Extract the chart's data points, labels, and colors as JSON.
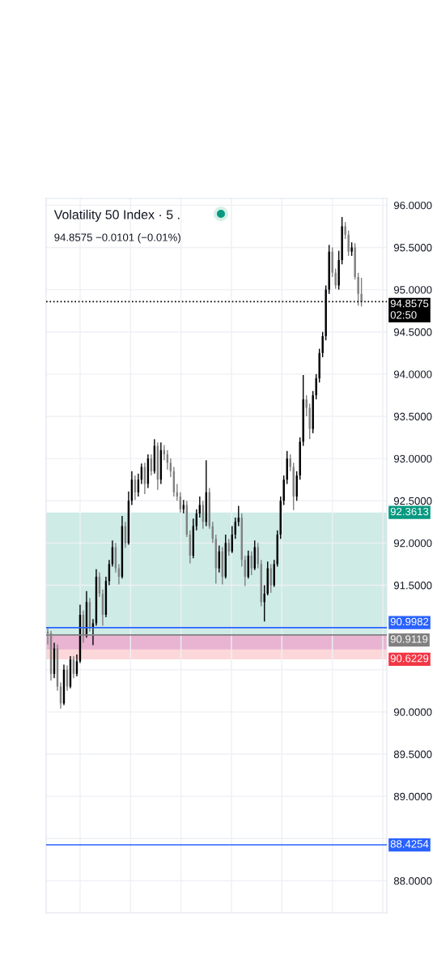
{
  "chart_data": {
    "type": "candlestick",
    "title": "Volatility 50 Index · 5 .",
    "subtitle": "94.8575 −0.0101 (−0.01%)",
    "categories": [
      null,
      null,
      null,
      null,
      null,
      null,
      null,
      null,
      null,
      null,
      null,
      null,
      null,
      null,
      null,
      null,
      null,
      null,
      null,
      null,
      null,
      null,
      null,
      null,
      null,
      null,
      null,
      null,
      null,
      null,
      null,
      null,
      null,
      null,
      null,
      null,
      null,
      null,
      null,
      null,
      null,
      null,
      null,
      null,
      null,
      null,
      null,
      null,
      null,
      null,
      null,
      null,
      null,
      null,
      null,
      null,
      null,
      null,
      null,
      null,
      null,
      null,
      null,
      null,
      null,
      null,
      null,
      null,
      null,
      null,
      null,
      null,
      null,
      null,
      null,
      null,
      null,
      null,
      null,
      null,
      null,
      null,
      null,
      null,
      null,
      null,
      null,
      null,
      null,
      null,
      null,
      null,
      null,
      null,
      null,
      null,
      null,
      null
    ],
    "ohlc": [
      [
        90.95,
        91.0,
        90.8,
        90.93
      ],
      [
        90.93,
        90.96,
        90.37,
        90.45
      ],
      [
        90.45,
        90.82,
        90.4,
        90.75
      ],
      [
        90.75,
        90.8,
        90.25,
        90.3
      ],
      [
        90.3,
        90.35,
        90.04,
        90.1
      ],
      [
        90.1,
        90.56,
        90.08,
        90.5
      ],
      [
        90.5,
        90.55,
        90.25,
        90.3
      ],
      [
        90.3,
        90.66,
        90.28,
        90.62
      ],
      [
        90.62,
        90.66,
        90.4,
        90.45
      ],
      [
        90.45,
        90.68,
        90.42,
        90.6
      ],
      [
        90.6,
        91.27,
        90.58,
        91.15
      ],
      [
        91.15,
        91.2,
        90.82,
        90.9
      ],
      [
        90.9,
        91.43,
        90.88,
        91.3
      ],
      [
        91.3,
        91.35,
        90.95,
        91.0
      ],
      [
        91.0,
        91.1,
        90.79,
        91.05
      ],
      [
        91.05,
        91.69,
        91.02,
        91.6
      ],
      [
        91.6,
        91.65,
        91.36,
        91.4
      ],
      [
        91.4,
        91.45,
        91.02,
        91.15
      ],
      [
        91.15,
        91.6,
        91.12,
        91.55
      ],
      [
        91.55,
        91.8,
        91.5,
        91.75
      ],
      [
        91.75,
        92.03,
        91.72,
        91.95
      ],
      [
        91.95,
        92.0,
        91.65,
        91.7
      ],
      [
        91.7,
        91.75,
        91.51,
        91.6
      ],
      [
        91.6,
        92.32,
        91.58,
        92.2
      ],
      [
        92.2,
        92.25,
        91.94,
        92.0
      ],
      [
        92.0,
        92.61,
        91.98,
        92.5
      ],
      [
        92.5,
        92.85,
        92.45,
        92.75
      ],
      [
        92.75,
        92.8,
        92.51,
        92.6
      ],
      [
        92.6,
        92.82,
        92.55,
        92.75
      ],
      [
        92.75,
        92.94,
        92.7,
        92.9
      ],
      [
        92.9,
        92.95,
        92.58,
        92.7
      ],
      [
        92.7,
        93.05,
        92.65,
        93.0
      ],
      [
        93.0,
        93.05,
        92.8,
        92.85
      ],
      [
        92.85,
        93.23,
        92.82,
        93.15
      ],
      [
        93.15,
        93.19,
        92.63,
        92.75
      ],
      [
        92.75,
        93.19,
        92.7,
        93.1
      ],
      [
        93.1,
        93.16,
        92.98,
        93.05
      ],
      [
        93.05,
        93.1,
        92.87,
        92.95
      ],
      [
        92.95,
        93.0,
        92.78,
        92.85
      ],
      [
        92.85,
        92.9,
        92.55,
        92.6
      ],
      [
        92.6,
        92.7,
        92.5,
        92.55
      ],
      [
        92.55,
        92.6,
        92.36,
        92.4
      ],
      [
        92.4,
        92.51,
        92.35,
        92.45
      ],
      [
        92.45,
        92.5,
        92.07,
        92.1
      ],
      [
        92.1,
        92.15,
        91.76,
        91.85
      ],
      [
        91.85,
        92.29,
        91.82,
        92.2
      ],
      [
        92.2,
        92.4,
        92.15,
        92.35
      ],
      [
        92.35,
        92.55,
        92.3,
        92.45
      ],
      [
        92.45,
        92.5,
        92.17,
        92.25
      ],
      [
        92.25,
        92.98,
        92.2,
        92.6
      ],
      [
        92.6,
        92.65,
        92.17,
        92.2
      ],
      [
        92.2,
        92.25,
        92.0,
        92.05
      ],
      [
        92.05,
        92.1,
        91.52,
        91.7
      ],
      [
        91.7,
        91.97,
        91.65,
        91.9
      ],
      [
        91.9,
        91.95,
        91.51,
        91.6
      ],
      [
        91.6,
        92.1,
        91.58,
        92.0
      ],
      [
        92.0,
        92.05,
        91.85,
        91.9
      ],
      [
        91.9,
        92.2,
        91.88,
        92.1
      ],
      [
        92.1,
        92.3,
        92.05,
        92.25
      ],
      [
        92.25,
        92.44,
        92.2,
        92.3
      ],
      [
        92.3,
        92.35,
        91.72,
        91.8
      ],
      [
        91.8,
        91.85,
        91.49,
        91.6
      ],
      [
        91.6,
        91.91,
        91.58,
        91.85
      ],
      [
        91.85,
        91.9,
        91.62,
        91.7
      ],
      [
        91.7,
        92.03,
        91.68,
        91.95
      ],
      [
        91.95,
        92.0,
        91.7,
        91.75
      ],
      [
        91.75,
        91.8,
        91.25,
        91.3
      ],
      [
        91.3,
        91.5,
        91.07,
        91.4
      ],
      [
        91.4,
        91.78,
        91.38,
        91.7
      ],
      [
        91.7,
        91.75,
        91.41,
        91.5
      ],
      [
        91.5,
        91.8,
        91.48,
        91.75
      ],
      [
        91.75,
        92.15,
        91.72,
        92.1
      ],
      [
        92.1,
        92.55,
        92.05,
        92.5
      ],
      [
        92.5,
        92.8,
        92.45,
        92.75
      ],
      [
        92.75,
        93.09,
        92.7,
        93.0
      ],
      [
        93.0,
        93.05,
        92.85,
        92.9
      ],
      [
        92.9,
        92.95,
        92.39,
        92.55
      ],
      [
        92.55,
        92.85,
        92.5,
        92.8
      ],
      [
        92.8,
        93.25,
        92.75,
        93.2
      ],
      [
        93.2,
        93.99,
        93.15,
        93.7
      ],
      [
        93.7,
        93.75,
        93.5,
        93.6
      ],
      [
        93.6,
        93.65,
        93.23,
        93.35
      ],
      [
        93.35,
        93.8,
        93.3,
        93.75
      ],
      [
        93.75,
        94.0,
        93.7,
        93.95
      ],
      [
        93.95,
        94.3,
        93.9,
        94.25
      ],
      [
        94.25,
        94.5,
        94.2,
        94.45
      ],
      [
        94.45,
        95.05,
        94.4,
        95.0
      ],
      [
        95.0,
        95.53,
        94.95,
        95.45
      ],
      [
        95.45,
        95.5,
        95.15,
        95.2
      ],
      [
        95.2,
        95.25,
        95.01,
        95.05
      ],
      [
        95.05,
        95.46,
        95.0,
        95.35
      ],
      [
        95.35,
        95.86,
        95.3,
        95.75
      ],
      [
        95.75,
        95.8,
        95.6,
        95.65
      ],
      [
        95.65,
        95.7,
        95.4,
        95.45
      ],
      [
        95.45,
        95.56,
        95.4,
        95.5
      ],
      [
        95.5,
        95.55,
        95.12,
        95.15
      ],
      [
        95.15,
        95.2,
        94.81,
        94.95
      ],
      [
        94.95,
        95.14,
        94.8,
        94.8575
      ]
    ],
    "colors": [
      "#808080",
      "#808080",
      "#000000",
      "#808080",
      "#808080",
      "#000000",
      "#808080",
      "#000000",
      "#808080",
      "#000000",
      "#000000",
      "#808080",
      "#000000",
      "#808080",
      "#000000",
      "#000000",
      "#808080",
      "#808080",
      "#000000",
      "#000000",
      "#000000",
      "#808080",
      "#808080",
      "#000000",
      "#808080",
      "#000000",
      "#000000",
      "#808080",
      "#000000",
      "#000000",
      "#808080",
      "#000000",
      "#808080",
      "#000000",
      "#808080",
      "#000000",
      "#808080",
      "#808080",
      "#808080",
      "#808080",
      "#808080",
      "#808080",
      "#000000",
      "#808080",
      "#808080",
      "#000000",
      "#000000",
      "#000000",
      "#808080",
      "#000000",
      "#808080",
      "#808080",
      "#808080",
      "#000000",
      "#808080",
      "#000000",
      "#808080",
      "#000000",
      "#000000",
      "#000000",
      "#808080",
      "#808080",
      "#000000",
      "#808080",
      "#000000",
      "#808080",
      "#808080",
      "#000000",
      "#000000",
      "#808080",
      "#000000",
      "#000000",
      "#000000",
      "#000000",
      "#000000",
      "#808080",
      "#808080",
      "#000000",
      "#000000",
      "#000000",
      "#808080",
      "#808080",
      "#000000",
      "#000000",
      "#000000",
      "#000000",
      "#000000",
      "#000000",
      "#808080",
      "#808080",
      "#000000",
      "#000000",
      "#808080",
      "#808080",
      "#000000",
      "#808080",
      "#808080",
      "#808080"
    ],
    "ylim": [
      87.62,
      96.08
    ],
    "yticks": [
      {
        "value": 88,
        "label": "88.0000"
      },
      {
        "value": 88.5,
        "label": null
      },
      {
        "value": 89,
        "label": "89.0000"
      },
      {
        "value": 89.5,
        "label": "89.5000"
      },
      {
        "value": 90,
        "label": "90.0000"
      },
      {
        "value": 90.5,
        "label": null
      },
      {
        "value": 91,
        "label": null
      },
      {
        "value": 91.5,
        "label": "91.5000"
      },
      {
        "value": 92,
        "label": "92.0000"
      },
      {
        "value": 92.5,
        "label": "92.5000"
      },
      {
        "value": 93,
        "label": "93.0000"
      },
      {
        "value": 93.5,
        "label": "93.5000"
      },
      {
        "value": 94,
        "label": "94.0000"
      },
      {
        "value": 94.5,
        "label": "94.5000"
      },
      {
        "value": 95,
        "label": "95.0000"
      },
      {
        "value": 95.5,
        "label": "95.5000"
      },
      {
        "value": 96,
        "label": "96.0000"
      }
    ],
    "grid": true,
    "tick_labels": "y",
    "ref_lines": [
      {
        "axis": "y",
        "value": 94.8575,
        "label": "94.8575\n02:50",
        "color": "#000000",
        "line_style": "dotted"
      },
      {
        "axis": "y",
        "value": 90.9982,
        "label": "90.9982",
        "color": "#2962ff",
        "line_style": "solid"
      },
      {
        "axis": "y",
        "value": 90.9119,
        "label": "90.9119",
        "color": "#808080",
        "line_style": "solid"
      },
      {
        "axis": "y",
        "value": 88.4254,
        "label": "88.4254",
        "color": "#2962ff",
        "line_style": "solid"
      }
    ],
    "bands": [
      {
        "axis": "y",
        "from": 90.9119,
        "to": 92.3613,
        "label": "92.3613",
        "color": "#089981"
      },
      {
        "axis": "y",
        "from": 90.9119,
        "to": 90.6229,
        "label": "90.6229",
        "color": "#f23645"
      },
      {
        "axis": "y",
        "from": 90.74,
        "to": 90.91,
        "color": "#9c27b0"
      }
    ]
  }
}
